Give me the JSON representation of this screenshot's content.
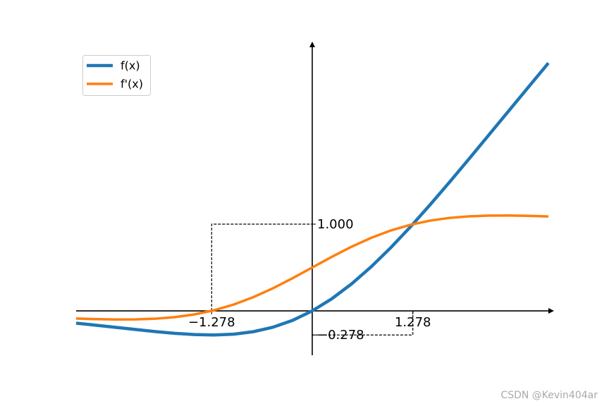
{
  "chart_data": {
    "type": "line",
    "x": [
      -3,
      -2.75,
      -2.5,
      -2.25,
      -2,
      -1.75,
      -1.5,
      -1.25,
      -1,
      -0.75,
      -0.5,
      -0.25,
      0,
      0.25,
      0.5,
      0.75,
      1,
      1.25,
      1.5,
      1.75,
      2,
      2.25,
      2.5,
      2.75,
      3
    ],
    "series": [
      {
        "name": "f(x)",
        "color": "#1f77b4",
        "values": [
          -0.1423,
          -0.1653,
          -0.1897,
          -0.2145,
          -0.2384,
          -0.2591,
          -0.2736,
          -0.2784,
          -0.2689,
          -0.2406,
          -0.1888,
          -0.1095,
          0,
          0.1405,
          0.3112,
          0.5094,
          0.7311,
          0.9716,
          1.2264,
          1.4909,
          1.7616,
          2.0355,
          2.3103,
          2.5847,
          2.8577
        ]
      },
      {
        "name": "f'(x)",
        "color": "#ff7f0e",
        "values": [
          -0.0881,
          -0.0953,
          -0.0994,
          -0.0987,
          -0.0908,
          -0.0727,
          -0.0413,
          0.0063,
          0.0723,
          0.1574,
          0.26,
          0.3763,
          0.5,
          0.6237,
          0.74,
          0.8426,
          0.9277,
          0.9937,
          1.0413,
          1.0727,
          1.0908,
          1.0987,
          1.0994,
          1.0953,
          1.0881
        ]
      }
    ],
    "xlim": [
      -3,
      3
    ],
    "ylim": [
      -0.512,
      3.081
    ],
    "xticks": [
      {
        "value": -1.278,
        "label": "−1.278"
      },
      {
        "value": 1.278,
        "label": "1.278"
      }
    ],
    "yticks": [
      {
        "value": 1,
        "label": "1.000"
      },
      {
        "value": -0.278,
        "label": "−0.278"
      }
    ],
    "legend": "upper left",
    "watermark": "CSDN @Kevin404ar"
  }
}
